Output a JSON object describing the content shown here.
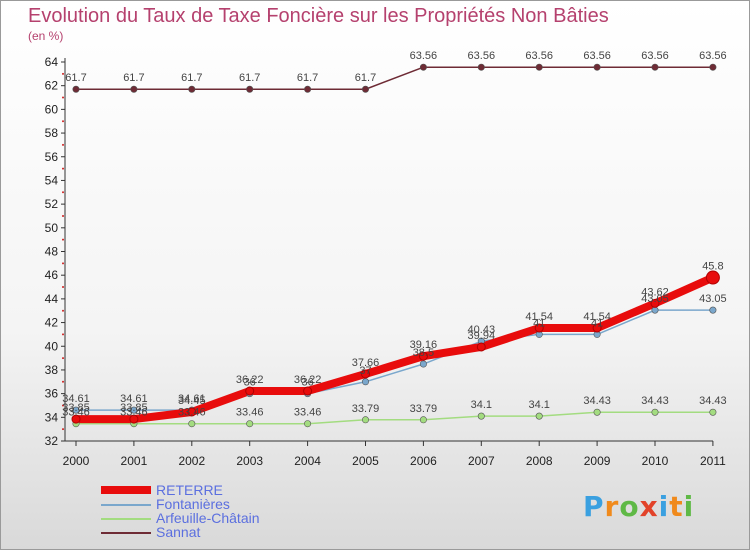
{
  "title": "Evolution du Taux de Taxe Foncière sur les Propriétés Non Bâties",
  "subtitle": "(en %)",
  "logo": "Proxiti",
  "chart_data": {
    "type": "line",
    "x": [
      "2000",
      "2001",
      "2002",
      "2003",
      "2004",
      "2005",
      "2006",
      "2007",
      "2008",
      "2009",
      "2010",
      "2011"
    ],
    "ylim": [
      32,
      64
    ],
    "yticks": [
      32,
      34,
      36,
      38,
      40,
      42,
      44,
      46,
      48,
      50,
      52,
      54,
      56,
      58,
      60,
      62,
      64
    ],
    "grid": false,
    "legend_position": "bottom-left",
    "series": [
      {
        "name": "Sannat",
        "color": "#6e2b35",
        "values": [
          61.7,
          61.7,
          61.7,
          61.7,
          61.7,
          61.7,
          63.56,
          63.56,
          63.56,
          63.56,
          63.56,
          63.56
        ],
        "labels": [
          "61.7",
          "61.7",
          "61.7",
          "61.7",
          "61.7",
          "61.7",
          "63.56",
          "63.56",
          "63.56",
          "63.56",
          "63.56",
          "63.56"
        ]
      },
      {
        "name": "Arfeuille-Châtain",
        "color": "#a3dc80",
        "values": [
          33.46,
          33.46,
          33.46,
          33.46,
          33.46,
          33.79,
          33.79,
          34.1,
          34.1,
          34.43,
          34.43,
          34.43
        ],
        "labels": [
          "33.46",
          "33.46",
          "33.46",
          "33.46",
          "33.46",
          "33.79",
          "33.79",
          "34.1",
          "34.1",
          "34.43",
          "34.43",
          "34.43"
        ]
      },
      {
        "name": "Fontanières",
        "color": "#7aa7cc",
        "values": [
          34.61,
          34.61,
          34.61,
          36,
          36,
          37,
          38.5,
          40.43,
          41,
          41,
          43.05,
          43.05
        ],
        "labels": [
          "34.61",
          "34.61",
          "34.61",
          "36",
          "36",
          "37",
          "38.5",
          "40.43",
          "41",
          "41",
          "43.05",
          "43.05"
        ]
      },
      {
        "name": "RETERRE",
        "color": "#e80c0c",
        "values": [
          33.85,
          33.85,
          34.45,
          36.22,
          36.22,
          37.66,
          39.16,
          39.94,
          41.54,
          41.54,
          43.62,
          45.8
        ],
        "labels": [
          "33.85",
          "33.85",
          "34.45",
          "36.22",
          "36.22",
          "37.66",
          "39.16",
          "39.94",
          "41.54",
          "41.54",
          "43.62",
          "45.8"
        ]
      }
    ],
    "legend": [
      "RETERRE",
      "Fontanières",
      "Arfeuille-Châtain",
      "Sannat"
    ]
  }
}
